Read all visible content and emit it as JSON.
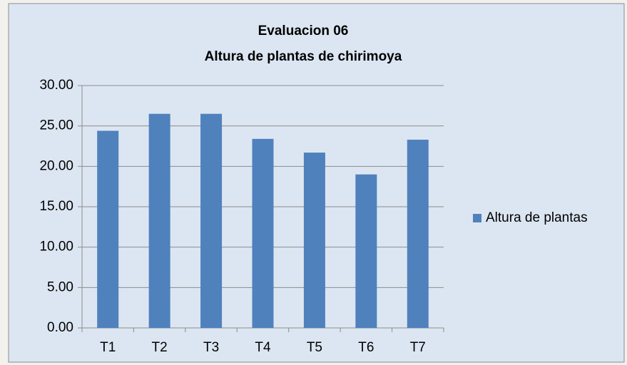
{
  "chart_data": {
    "type": "bar",
    "title": "Evaluacion 06",
    "subtitle": "Altura de plantas de chirimoya",
    "categories": [
      "T1",
      "T2",
      "T3",
      "T4",
      "T5",
      "T6",
      "T7"
    ],
    "series": [
      {
        "name": "Altura de plantas",
        "color": "#4f81bd",
        "values": [
          24.4,
          26.5,
          26.5,
          23.4,
          21.7,
          19.0,
          23.3
        ]
      }
    ],
    "ylim": [
      0,
      30
    ],
    "yticks": [
      {
        "value": 0,
        "label": "0.00"
      },
      {
        "value": 5,
        "label": "5.00"
      },
      {
        "value": 10,
        "label": "10.00"
      },
      {
        "value": 15,
        "label": "15.00"
      },
      {
        "value": 20,
        "label": "20.00"
      },
      {
        "value": 25,
        "label": "25.00"
      },
      {
        "value": 30,
        "label": "30.00"
      }
    ],
    "grid": true,
    "legend": "right"
  }
}
